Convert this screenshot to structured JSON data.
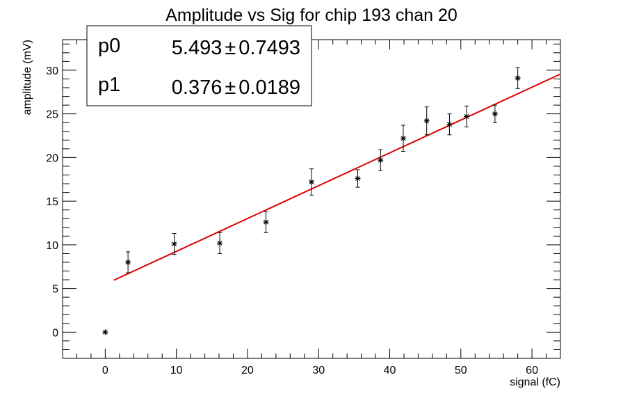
{
  "chart_data": {
    "type": "scatter",
    "title": "Amplitude vs Sig for chip 193 chan 20",
    "xlabel": "signal (fC)",
    "ylabel": "amplitude (mV)",
    "xlim": [
      -6,
      64
    ],
    "ylim": [
      -3,
      33.5
    ],
    "x_ticks": [
      0,
      10,
      20,
      30,
      40,
      50,
      60
    ],
    "y_ticks": [
      0,
      5,
      10,
      15,
      20,
      25,
      30
    ],
    "x_tick_labels": [
      "0",
      "10",
      "20",
      "30",
      "40",
      "50",
      "60"
    ],
    "y_tick_labels": [
      "0",
      "5",
      "10",
      "15",
      "20",
      "25",
      "30"
    ],
    "grid": false,
    "points": [
      {
        "x": 0,
        "y": 0,
        "err": 0
      },
      {
        "x": 3.2,
        "y": 8.0,
        "err": 1.2
      },
      {
        "x": 9.7,
        "y": 10.1,
        "err": 1.2
      },
      {
        "x": 16.1,
        "y": 10.2,
        "err": 1.2
      },
      {
        "x": 22.6,
        "y": 12.6,
        "err": 1.2
      },
      {
        "x": 29.0,
        "y": 17.2,
        "err": 1.5
      },
      {
        "x": 35.5,
        "y": 17.6,
        "err": 1.0
      },
      {
        "x": 38.7,
        "y": 19.7,
        "err": 1.2
      },
      {
        "x": 41.9,
        "y": 22.2,
        "err": 1.5
      },
      {
        "x": 45.2,
        "y": 24.2,
        "err": 1.6
      },
      {
        "x": 48.4,
        "y": 23.8,
        "err": 1.2
      },
      {
        "x": 50.8,
        "y": 24.7,
        "err": 1.2
      },
      {
        "x": 54.8,
        "y": 25.0,
        "err": 1.0
      },
      {
        "x": 58.0,
        "y": 29.1,
        "err": 1.2
      }
    ],
    "fit": {
      "x_range": [
        1.2,
        64
      ],
      "intercept": 5.493,
      "slope": 0.376,
      "color": "#dd0000"
    },
    "stats": [
      {
        "name": "p0",
        "value": "5.493",
        "pm": "±",
        "error": "0.7493"
      },
      {
        "name": "p1",
        "value": "0.376",
        "pm": "±",
        "error": "0.0189"
      }
    ],
    "stats_position": "top-left"
  }
}
